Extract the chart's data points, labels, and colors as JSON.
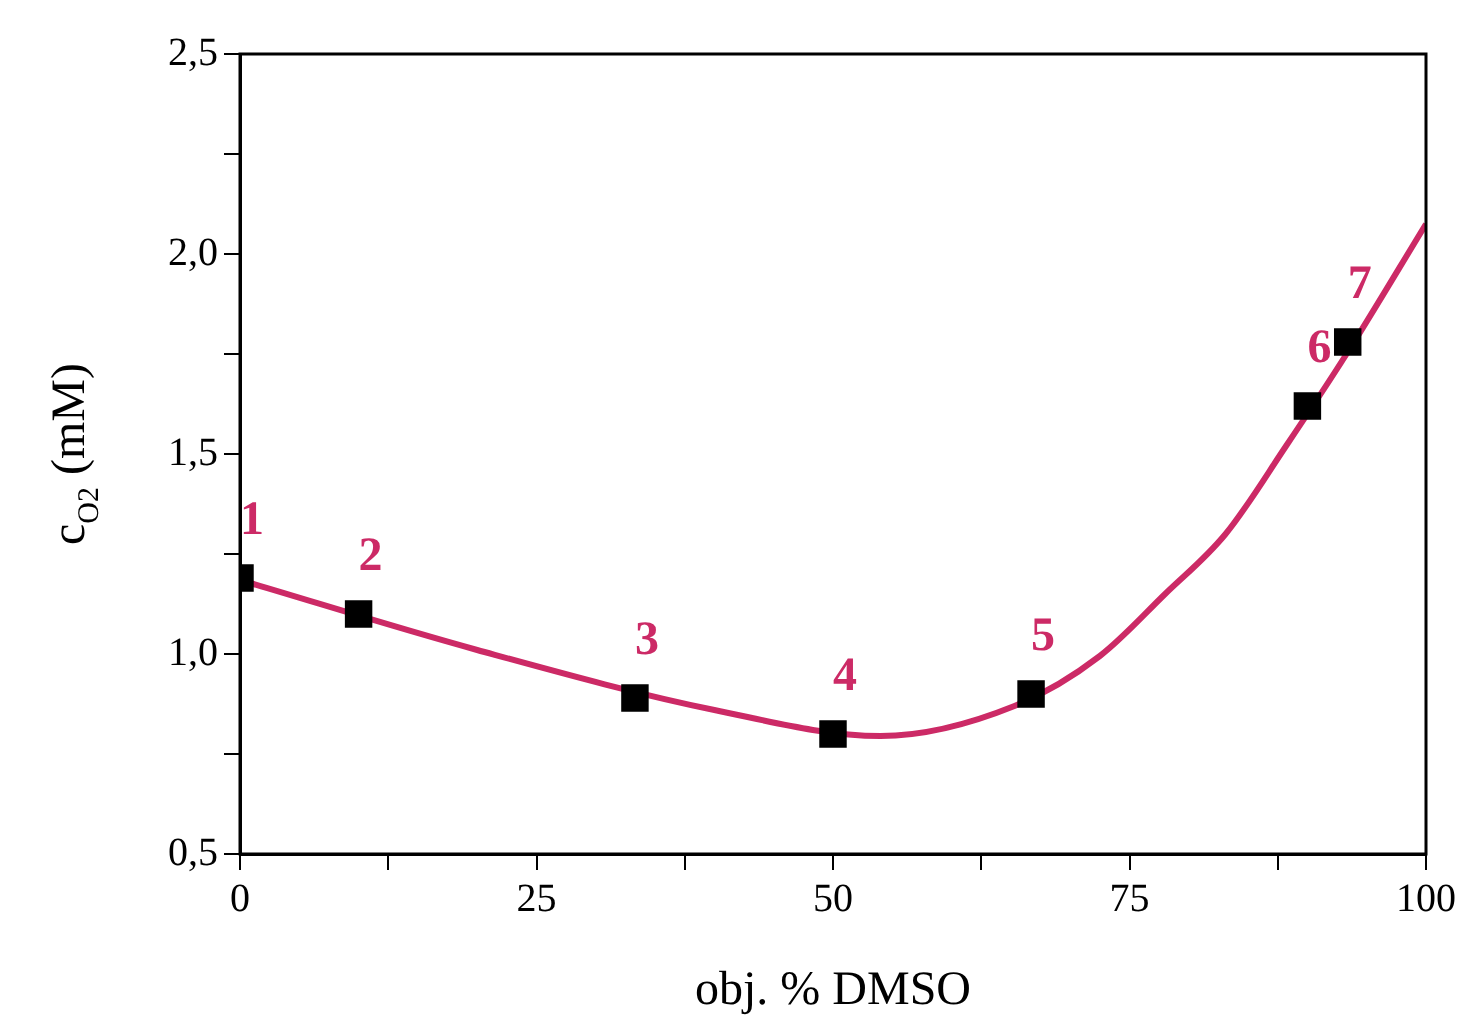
{
  "chart_data": {
    "type": "scatter",
    "xlabel": "obj. % DMSO",
    "ylabel": "c$_{O2}$ (mM)",
    "xlim": [
      0,
      100
    ],
    "ylim": [
      0.5,
      2.5
    ],
    "xticks": [
      0,
      {
        "value": 12.5,
        "label": null
      },
      25,
      {
        "value": 37.5,
        "label": null
      },
      50,
      {
        "value": 62.5,
        "label": null
      },
      75,
      {
        "value": 87.5,
        "label": null
      },
      100
    ],
    "yticks": [
      {
        "value": 0.5,
        "label": "0,5"
      },
      {
        "value": 0.75,
        "label": null
      },
      {
        "value": 1,
        "label": "1,0"
      },
      {
        "value": 1.25,
        "label": null
      },
      {
        "value": 1.5,
        "label": "1,5"
      },
      {
        "value": 1.75,
        "label": null
      },
      {
        "value": 2,
        "label": "2,0"
      },
      {
        "value": 2.25,
        "label": null
      },
      {
        "value": 2.5,
        "label": "2,5"
      }
    ],
    "grid": false,
    "legend": false,
    "series": [
      {
        "type": "line",
        "color": "#cc2a66",
        "marker": "none",
        "line_style": "solid",
        "x": [
          0,
          20,
          40,
          54,
          65.3,
          72.5,
          78,
          83.1,
          88.2,
          93.3,
          100
        ],
        "values": [
          1.185,
          1.01,
          0.86,
          0.795,
          0.87,
          0.995,
          1.15,
          1.3,
          1.52,
          1.75,
          2.075
        ]
      },
      {
        "color": "#000000",
        "marker": "square",
        "x": [
          0,
          10,
          33.3,
          50,
          66.7,
          90,
          93.4
        ],
        "values": [
          1.19,
          1.1,
          0.89,
          0.8,
          0.9,
          1.62,
          1.78
        ]
      }
    ],
    "annotations": [
      {
        "text": "1",
        "x": 0,
        "y": 1.19
      },
      {
        "text": "2",
        "x": 10,
        "y": 1.1
      },
      {
        "text": "3",
        "x": 33.3,
        "y": 0.89
      },
      {
        "text": "4",
        "x": 50,
        "y": 0.8
      },
      {
        "text": "5",
        "x": 66.7,
        "y": 0.9
      },
      {
        "text": "6",
        "x": 90,
        "y": 1.62
      },
      {
        "text": "7",
        "x": 93.4,
        "y": 1.78
      }
    ]
  }
}
